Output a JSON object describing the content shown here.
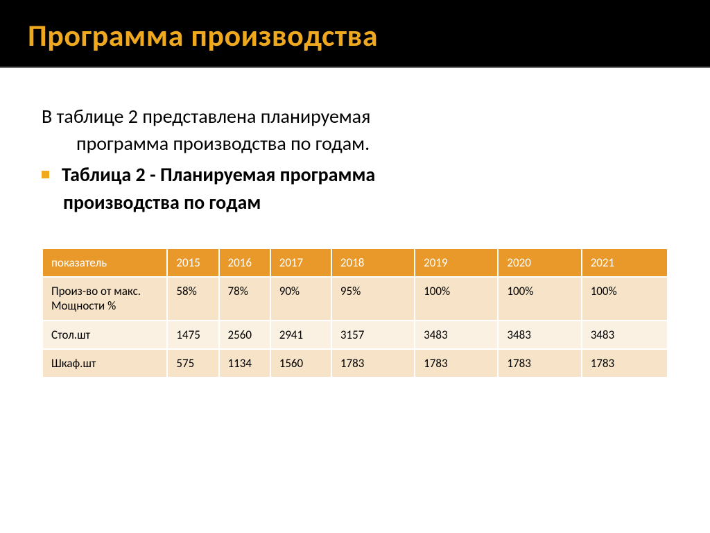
{
  "title": "Программа производства",
  "intro": {
    "line1": "В таблице 2 представлена планируемая",
    "line2": "программа производства по годам."
  },
  "caption": {
    "line1": "Таблица 2 - Планируемая программа",
    "line2": "производства  по годам"
  },
  "table": {
    "header_bg": "#e8992a",
    "header_fg": "#ffffff",
    "row_odd_bg": "#f7e4c8",
    "row_even_bg": "#faf1e2",
    "border_color": "#ffffff",
    "columns": [
      "показатель",
      "2015",
      "2016",
      "2017",
      "2018",
      "2019",
      "2020",
      "2021"
    ],
    "rows": [
      [
        "Произ-во от макс. Мощности %",
        "58%",
        "78%",
        "90%",
        "95%",
        "100%",
        "100%",
        "100%"
      ],
      [
        "Стол.шт",
        "1475",
        "2560",
        "2941",
        "3157",
        "3483",
        "3483",
        "3483"
      ],
      [
        "Шкаф.шт",
        "575",
        "1134",
        "1560",
        "1783",
        "1783",
        "1783",
        "1783"
      ]
    ]
  },
  "colors": {
    "title_bg": "#000000",
    "title_fg": "#f0a91f",
    "body_bg": "#ffffff",
    "bullet": "#f0a91f"
  },
  "fonts": {
    "title_size_pt": 33,
    "body_size_pt": 21,
    "table_size_pt": 13
  }
}
